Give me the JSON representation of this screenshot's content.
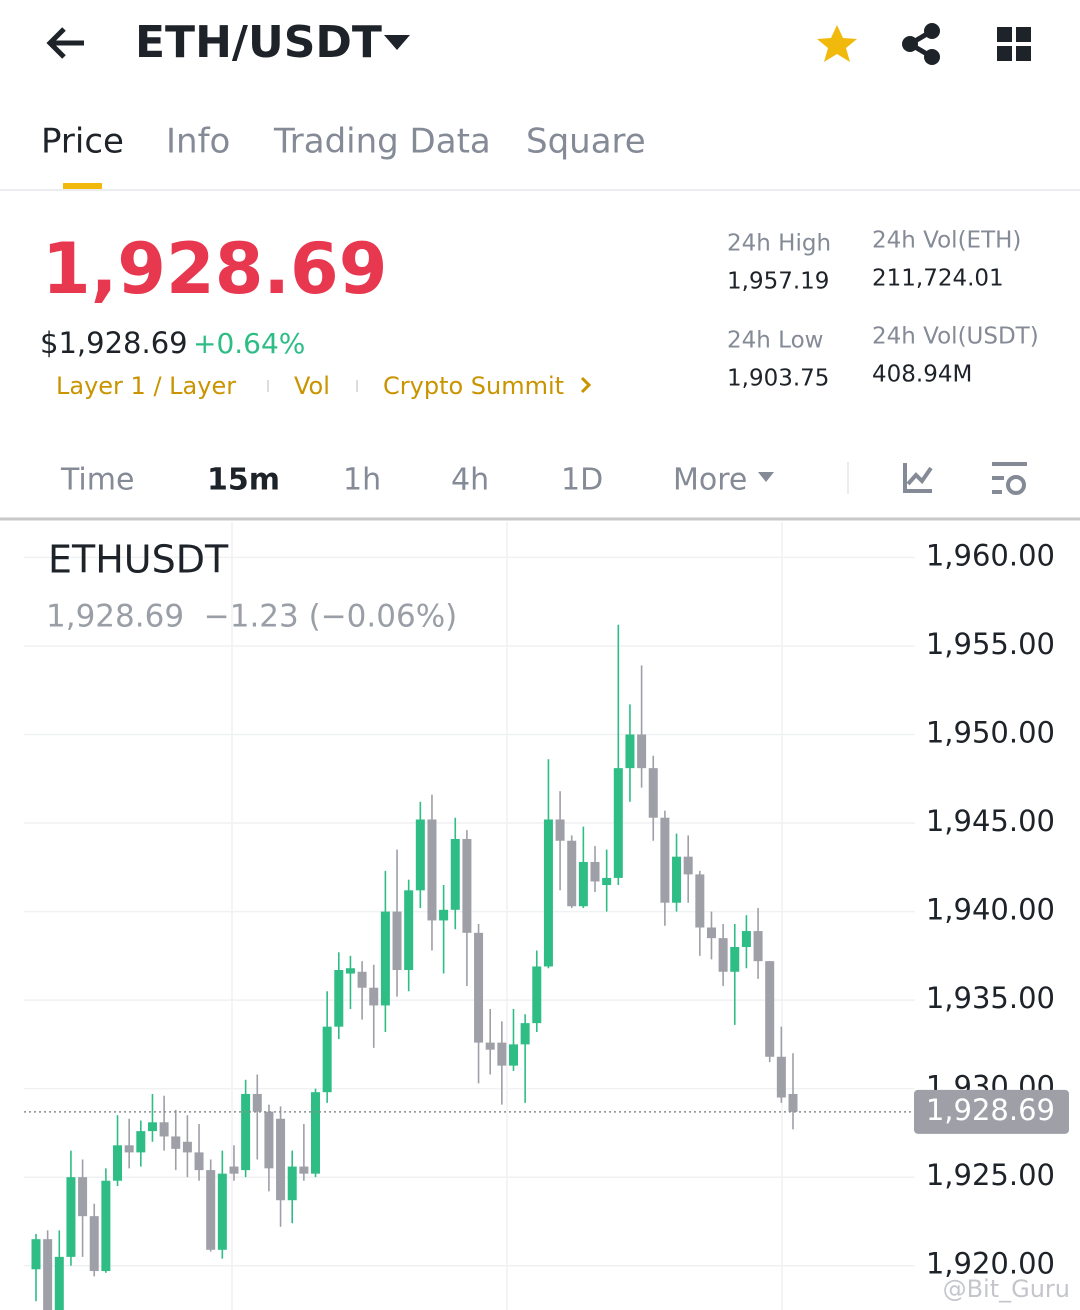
{
  "header": {
    "title": "ETH/USDT",
    "tabs": [
      "Price",
      "Info",
      "Trading Data",
      "Square"
    ]
  },
  "ticker": {
    "price": "1,928.69",
    "usd_price": "$1,928.69",
    "change": "+0.64%",
    "tags": [
      "Layer 1 / Layer",
      "Vol",
      "Crypto Summit"
    ],
    "stats": [
      {
        "label": "24h High",
        "value": "1,957.19"
      },
      {
        "label": "24h Low",
        "value": "1,903.75"
      },
      {
        "label": "24h Vol(ETH)",
        "value": "211,724.01"
      },
      {
        "label": "24h Vol(USDT)",
        "value": "408.94M"
      }
    ]
  },
  "timeframes": [
    "Time",
    "15m",
    "1h",
    "4h",
    "1D",
    "More"
  ],
  "chart_data": {
    "type": "candlestick",
    "title": "ETHUSDT",
    "subtitle": "1,928.69  −1.23 (−0.06%)",
    "up_color": "#2ebd85",
    "down_color": "#9e9fa7",
    "open": [
      1919.8,
      1921.5,
      1917,
      1920.5,
      1925,
      1922.8,
      1919.7,
      1924.8,
      1926.8,
      1926.4,
      1927.6,
      1928.1,
      1927.3,
      1927,
      1926.4,
      1925.4,
      1920.9,
      1925.6,
      1925.4,
      1929.7,
      1928.7,
      1928.3,
      1923.7,
      1925.6,
      1925.2,
      1929.8,
      1933.5,
      1936.5,
      1936.6,
      1935.7,
      1934.7,
      1940,
      1936.7,
      1941.2,
      1945.2,
      1939.5,
      1940.1,
      1944.1,
      1938.8,
      1932.6,
      1932.6,
      1931.3,
      1932.5,
      1933.7,
      1936.9,
      1945.2,
      1944,
      1940.3,
      1942.8,
      1941.5,
      1941.9,
      1948.1,
      1950,
      1948.1,
      1945.3,
      1940.5,
      1943.1,
      1942.1,
      1939.1,
      1938.5,
      1936.6,
      1938,
      1938.9,
      1937.2,
      1931.8,
      1929.7
    ],
    "high": [
      1921.8,
      1922,
      1922,
      1926.5,
      1926,
      1923.5,
      1925.5,
      1928.5,
      1928.3,
      1928.2,
      1929.7,
      1929.6,
      1928.8,
      1928.5,
      1928,
      1926,
      1926.5,
      1926.8,
      1930.5,
      1930.8,
      1929.1,
      1929,
      1926.5,
      1928,
      1930,
      1935.5,
      1937.7,
      1937.5,
      1937.2,
      1937,
      1942.3,
      1943.5,
      1941.8,
      1946.2,
      1946.6,
      1941.5,
      1945.3,
      1944.6,
      1939.3,
      1934.5,
      1933.8,
      1934.5,
      1934.2,
      1937.8,
      1948.6,
      1946.8,
      1944.3,
      1944.8,
      1943.7,
      1943.5,
      1956.2,
      1951.7,
      1953.9,
      1948.8,
      1945.7,
      1944.4,
      1944.3,
      1942.3,
      1940,
      1939.3,
      1939.3,
      1939.8,
      1940.2,
      1937.2,
      1933.5,
      1932
    ],
    "low": [
      1918,
      1916,
      1917,
      1920,
      1920.5,
      1919.4,
      1919.6,
      1924.5,
      1925.5,
      1925.6,
      1927,
      1926.5,
      1925.4,
      1925,
      1924.8,
      1920.8,
      1920.4,
      1924.8,
      1925,
      1926,
      1924.2,
      1922.2,
      1922.4,
      1924.8,
      1925,
      1929.2,
      1932.8,
      1934.5,
      1933.9,
      1932.3,
      1933.2,
      1935.2,
      1935.5,
      1940.2,
      1937.8,
      1936.5,
      1939,
      1935.8,
      1930.3,
      1930.8,
      1929.1,
      1931,
      1929.2,
      1933.2,
      1936.8,
      1941.2,
      1940.2,
      1940.2,
      1941.1,
      1940,
      1941.5,
      1946.2,
      1947,
      1944,
      1939.2,
      1940,
      1940.5,
      1937.5,
      1937.3,
      1935.8,
      1933.6,
      1936.8,
      1936.2,
      1931.5,
      1929.2,
      1927.7
    ],
    "close": [
      1921.5,
      1917,
      1920.5,
      1925,
      1922.8,
      1919.7,
      1924.8,
      1926.8,
      1926.4,
      1927.6,
      1928.1,
      1927.3,
      1926.6,
      1926.4,
      1925.4,
      1920.9,
      1925.2,
      1925.2,
      1929.7,
      1928.7,
      1925.5,
      1923.7,
      1925.6,
      1925.2,
      1929.8,
      1933.5,
      1936.7,
      1936.8,
      1935.7,
      1934.7,
      1940,
      1936.7,
      1941.2,
      1945.2,
      1939.5,
      1940.1,
      1944.1,
      1938.8,
      1932.6,
      1932.2,
      1931.3,
      1932.5,
      1933.7,
      1936.9,
      1945.2,
      1944,
      1940.3,
      1942.8,
      1941.7,
      1941.9,
      1948.1,
      1950,
      1948.1,
      1945.3,
      1940.5,
      1943.1,
      1942.1,
      1939.1,
      1938.5,
      1936.6,
      1938,
      1938.9,
      1937.2,
      1931.8,
      1929.5,
      1928.69
    ],
    "ylim": [
      1917.5,
      1962
    ],
    "yticks": [
      {
        "value": 1960,
        "label": "1,960.00"
      },
      {
        "value": 1955,
        "label": "1,955.00"
      },
      {
        "value": 1950,
        "label": "1,950.00"
      },
      {
        "value": 1945,
        "label": "1,945.00"
      },
      {
        "value": 1940,
        "label": "1,940.00"
      },
      {
        "value": 1935,
        "label": "1,935.00"
      },
      {
        "value": 1930,
        "label": "1,930.00"
      },
      {
        "value": 1925,
        "label": "1,925.00"
      },
      {
        "value": 1920,
        "label": "1,920.00"
      }
    ],
    "grid": true,
    "last_price": {
      "value": 1928.69,
      "label": "1,928.69"
    }
  },
  "watermark": "@Bit_Guru"
}
